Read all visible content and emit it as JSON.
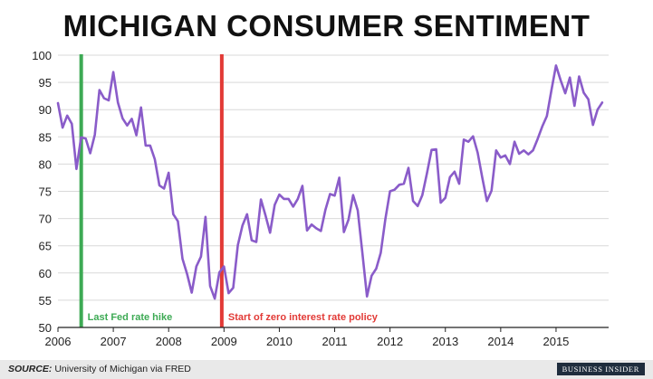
{
  "title": "MICHIGAN CONSUMER SENTIMENT",
  "source_label": "SOURCE:",
  "source_text": " University of Michigan via FRED",
  "brand": "BUSINESS INSIDER",
  "chart_data": {
    "type": "line",
    "title": "MICHIGAN CONSUMER SENTIMENT",
    "xlabel": "",
    "ylabel": "",
    "xlim": [
      2006,
      2015.95
    ],
    "ylim": [
      50,
      100
    ],
    "y_ticks": [
      50,
      55,
      60,
      65,
      70,
      75,
      80,
      85,
      90,
      95,
      100
    ],
    "x_ticks": [
      2006,
      2007,
      2008,
      2009,
      2010,
      2011,
      2012,
      2013,
      2014,
      2015
    ],
    "grid": "horizontal",
    "series": [
      {
        "color": "#8a5cc9",
        "start_year": 2006,
        "step": 0.0833333,
        "values": [
          91.2,
          86.7,
          88.9,
          87.4,
          79.1,
          84.9,
          84.7,
          82.0,
          85.4,
          93.6,
          92.1,
          91.7,
          96.9,
          91.3,
          88.4,
          87.1,
          88.3,
          85.3,
          90.4,
          83.4,
          83.4,
          80.9,
          76.1,
          75.5,
          78.4,
          70.8,
          69.5,
          62.6,
          59.8,
          56.4,
          61.2,
          63.0,
          70.3,
          57.6,
          55.3,
          60.1,
          61.2,
          56.3,
          57.3,
          65.1,
          68.7,
          70.8,
          66.0,
          65.7,
          73.5,
          70.6,
          67.4,
          72.5,
          74.4,
          73.6,
          73.6,
          72.2,
          73.6,
          76.0,
          67.8,
          68.9,
          68.2,
          67.7,
          71.6,
          74.5,
          74.2,
          77.5,
          67.5,
          69.8,
          74.3,
          71.5,
          63.7,
          55.7,
          59.5,
          60.8,
          63.7,
          69.9,
          75.0,
          75.3,
          76.2,
          76.4,
          79.3,
          73.2,
          72.3,
          74.3,
          78.3,
          82.6,
          82.7,
          72.9,
          73.8,
          77.6,
          78.6,
          76.4,
          84.5,
          84.1,
          85.1,
          82.1,
          77.5,
          73.2,
          75.1,
          82.5,
          81.2,
          81.6,
          80.0,
          84.1,
          81.9,
          82.5,
          81.8,
          82.5,
          84.6,
          86.9,
          88.8,
          93.6,
          98.1,
          95.4,
          93.0,
          95.9,
          90.7,
          96.1,
          93.1,
          91.9,
          87.2,
          90.0,
          91.3
        ]
      }
    ],
    "annotations": [
      {
        "x": 2006.42,
        "label": "Last Fed rate hike",
        "color": "#3daa54"
      },
      {
        "x": 2008.96,
        "label": "Start of zero interest rate policy",
        "color": "#e23a36"
      }
    ]
  }
}
